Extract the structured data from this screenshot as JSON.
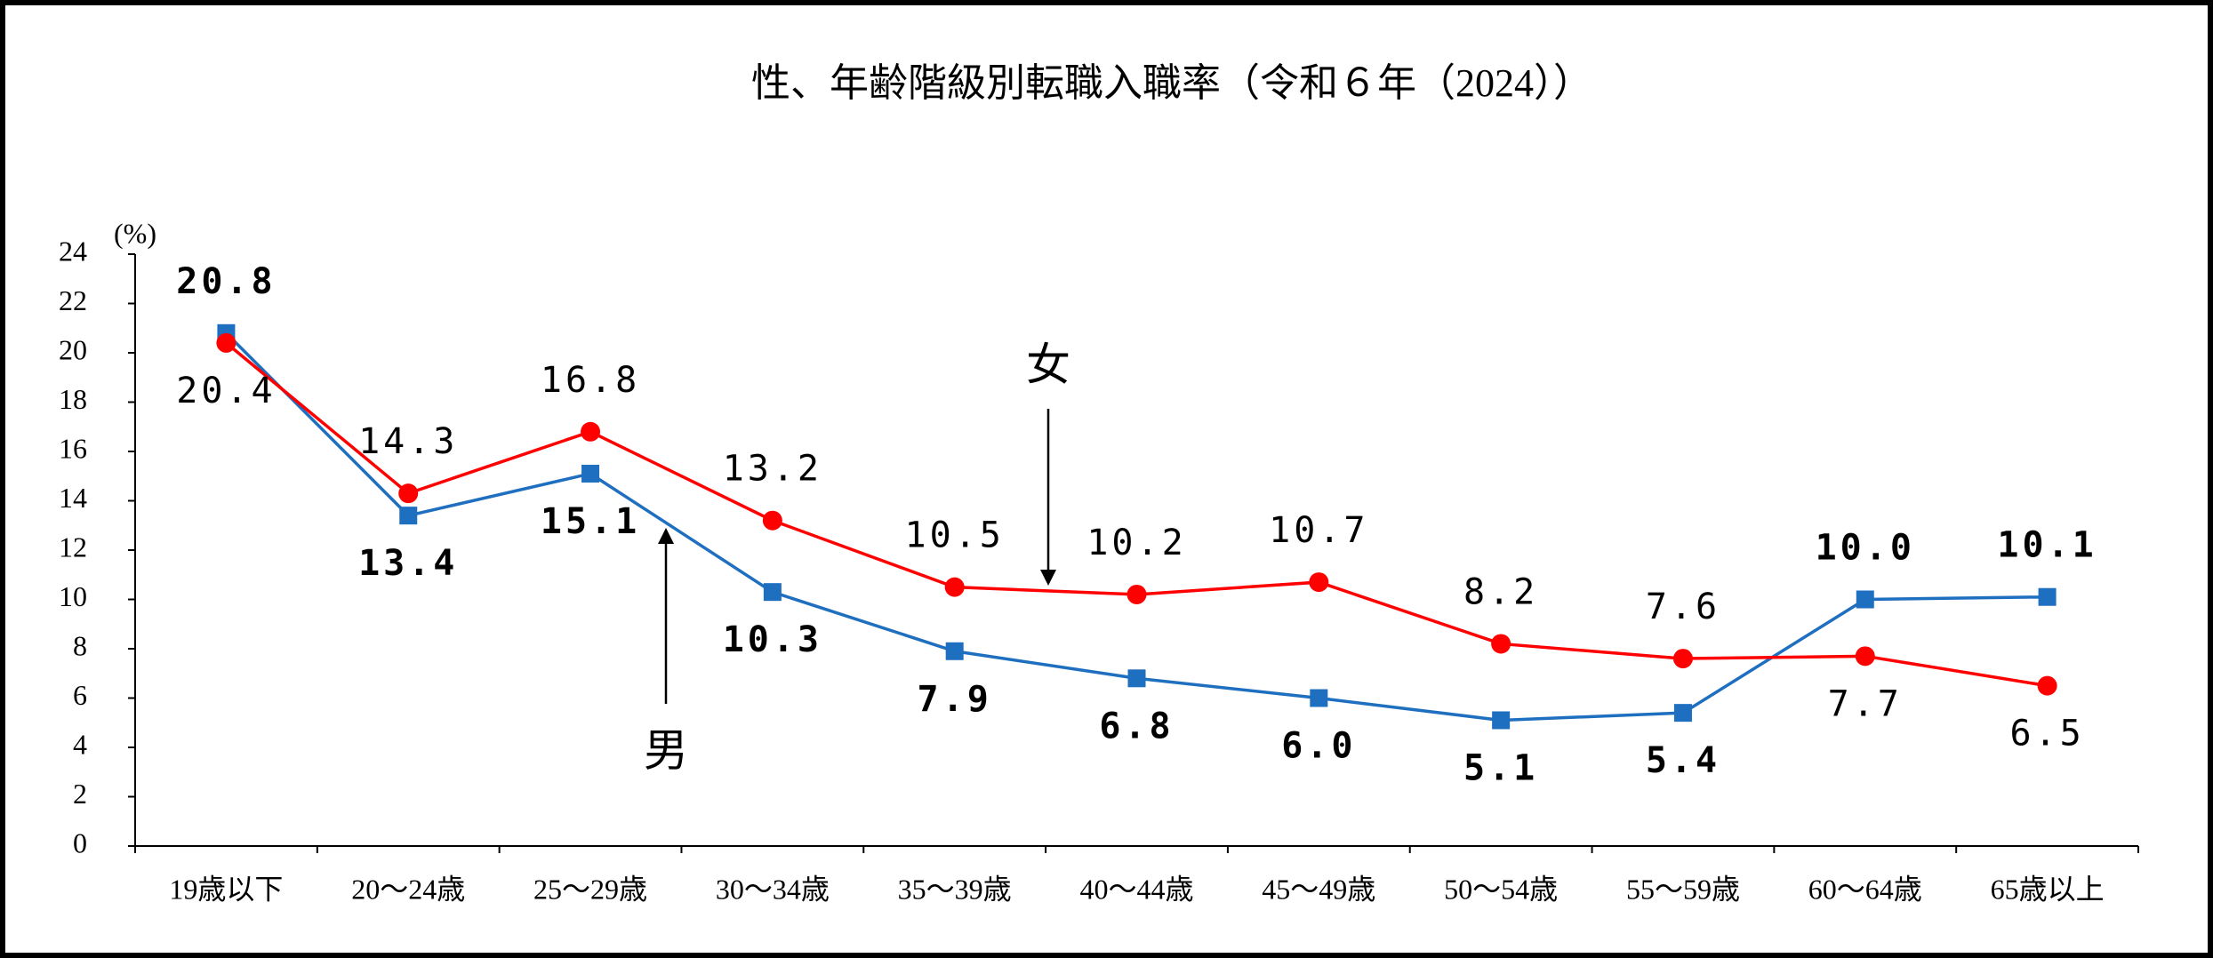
{
  "chart_data": {
    "type": "line",
    "title": "性、年齢階級別転職入職率（令和６年（2024））",
    "y_unit": "(%)",
    "categories": [
      "19歳以下",
      "20～24歳",
      "25～29歳",
      "30～34歳",
      "35～39歳",
      "40～44歳",
      "45～49歳",
      "50～54歳",
      "55～59歳",
      "60～64歳",
      "65歳以上"
    ],
    "series": [
      {
        "name": "男",
        "color": "#1f6fc0",
        "marker": "square",
        "bold_labels": true,
        "values": [
          20.8,
          13.4,
          15.1,
          10.3,
          7.9,
          6.8,
          6.0,
          5.1,
          5.4,
          10.0,
          10.1
        ],
        "value_labels": [
          "20.8",
          "13.4",
          "15.1",
          "10.3",
          "7.9",
          "6.8",
          "6.0",
          "5.1",
          "5.4",
          "10.0",
          "10.1"
        ]
      },
      {
        "name": "女",
        "color": "#ff0000",
        "marker": "circle",
        "bold_labels": false,
        "values": [
          20.4,
          14.3,
          16.8,
          13.2,
          10.5,
          10.2,
          10.7,
          8.2,
          7.6,
          7.7,
          6.5
        ],
        "value_labels": [
          "20.4",
          "14.3",
          "16.8",
          "13.2",
          "10.5",
          "10.2",
          "10.7",
          "8.2",
          "7.6",
          "7.7",
          "6.5"
        ]
      }
    ],
    "ylim": [
      0,
      24
    ],
    "yticks": [
      0,
      2,
      4,
      6,
      8,
      10,
      12,
      14,
      16,
      18,
      20,
      22,
      24
    ],
    "grid": false
  }
}
